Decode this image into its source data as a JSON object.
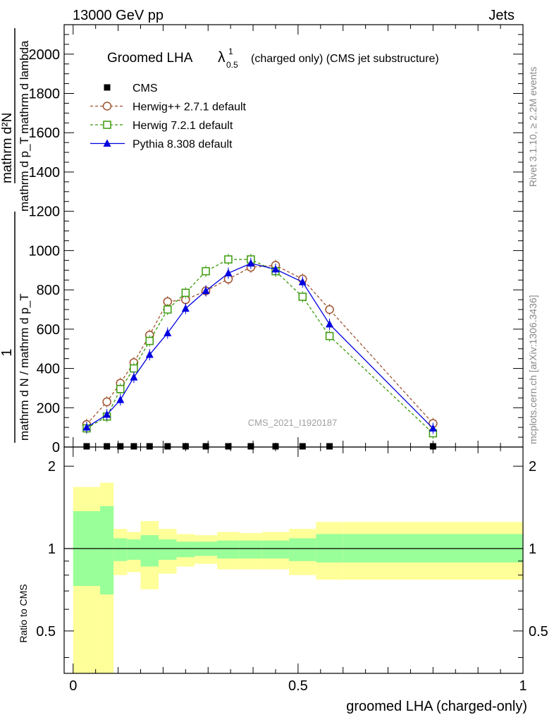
{
  "header": {
    "left": "13000 GeV pp",
    "right": "Jets"
  },
  "title": {
    "main": "Groomed LHA",
    "lambda": "λ",
    "sup": "1",
    "sub": "0.5",
    "rest": "(charged only) (CMS jet substructure)"
  },
  "side": {
    "rivet": "Rivet 3.1.10, ≥ 2.2M events",
    "mcplots": "mcplots.cern.ch [arXiv:1306.3436]"
  },
  "watermark": "CMS_2021_I1920187",
  "top_ylabel": {
    "one": "1",
    "denominator": "mathrm d N / mathrm d p_T",
    "numerator": "mathrm d²N",
    "denominator2": "mathrm d p_T mathrm d lambda"
  },
  "ratio_ylabel": "Ratio to CMS",
  "xlabel": "groomed LHA (charged-only)",
  "legend": [
    {
      "label": "CMS",
      "color": "#000000",
      "marker": "square-filled"
    },
    {
      "label": "Herwig++ 2.7.1 default",
      "color": "#a0522d",
      "marker": "circle-open"
    },
    {
      "label": "Herwig 7.2.1 default",
      "color": "#3a9a0a",
      "marker": "square-open"
    },
    {
      "label": "Pythia 8.308 default",
      "color": "#0000e0",
      "marker": "triangle-filled"
    }
  ],
  "chart_data": [
    {
      "type": "line",
      "title": "Groomed LHA λ^1_0.5 (charged only) (CMS jet substructure)",
      "xlabel": "groomed LHA (charged-only)",
      "ylabel": "1/(mathrm d N / mathrm d p_T) mathrm d²N / (mathrm d p_T mathrm d lambda)",
      "xlim": [
        -0.02,
        1.0
      ],
      "ylim": [
        0,
        2150
      ],
      "yticks": [
        0,
        200,
        400,
        600,
        800,
        1000,
        1200,
        1400,
        1600,
        1800,
        2000
      ],
      "ytick_labels": [
        "0",
        "200",
        "400",
        "600",
        "800",
        "1000",
        "1200",
        "1400",
        "1600",
        "1800",
        "2000"
      ],
      "x": [
        0.03,
        0.075,
        0.105,
        0.135,
        0.17,
        0.21,
        0.25,
        0.295,
        0.345,
        0.395,
        0.45,
        0.51,
        0.57,
        0.8
      ],
      "series": [
        {
          "name": "CMS",
          "values": [
            0,
            0,
            0,
            0,
            0,
            0,
            0,
            0,
            0,
            0,
            0,
            0,
            0,
            0
          ]
        },
        {
          "name": "Herwig++ 2.7.1 default",
          "values": [
            115,
            230,
            325,
            430,
            570,
            740,
            750,
            795,
            855,
            915,
            925,
            855,
            700,
            120
          ]
        },
        {
          "name": "Herwig 7.2.1 default",
          "values": [
            95,
            155,
            295,
            400,
            540,
            700,
            785,
            895,
            955,
            955,
            895,
            765,
            565,
            70
          ]
        },
        {
          "name": "Pythia 8.308 default",
          "values": [
            100,
            165,
            240,
            355,
            470,
            580,
            705,
            795,
            885,
            935,
            905,
            840,
            625,
            95
          ]
        }
      ]
    },
    {
      "type": "area",
      "ylabel": "Ratio to CMS",
      "xlabel": "groomed LHA (charged-only)",
      "xlim": [
        -0.02,
        1.0
      ],
      "ylim": [
        0.35,
        2.35
      ],
      "yscale": "log",
      "yticks": [
        0.5,
        1,
        2
      ],
      "ytick_labels": [
        "0.5",
        "1",
        "2"
      ],
      "xticks": [
        0,
        0.5,
        1
      ],
      "xtick_labels": [
        "0",
        "0.5",
        "1"
      ],
      "bin_edges": [
        0.0,
        0.06,
        0.09,
        0.12,
        0.15,
        0.19,
        0.23,
        0.27,
        0.32,
        0.37,
        0.42,
        0.48,
        0.54,
        0.6,
        1.0
      ],
      "band_outer_low": [
        0.35,
        0.35,
        0.8,
        0.82,
        0.71,
        0.81,
        0.86,
        0.88,
        0.84,
        0.84,
        0.84,
        0.8,
        0.77,
        0.77
      ],
      "band_outer_high": [
        1.68,
        1.74,
        1.18,
        1.15,
        1.26,
        1.18,
        1.13,
        1.12,
        1.15,
        1.14,
        1.15,
        1.18,
        1.25,
        1.25
      ],
      "band_inner_low": [
        0.73,
        0.68,
        0.9,
        0.91,
        0.86,
        0.91,
        0.93,
        0.94,
        0.92,
        0.92,
        0.92,
        0.9,
        0.89,
        0.89
      ],
      "band_inner_high": [
        1.37,
        1.43,
        1.09,
        1.08,
        1.12,
        1.08,
        1.06,
        1.06,
        1.07,
        1.07,
        1.07,
        1.09,
        1.13,
        1.13
      ],
      "band_colors": {
        "outer": "#ffff99",
        "inner": "#99ff99"
      }
    }
  ]
}
